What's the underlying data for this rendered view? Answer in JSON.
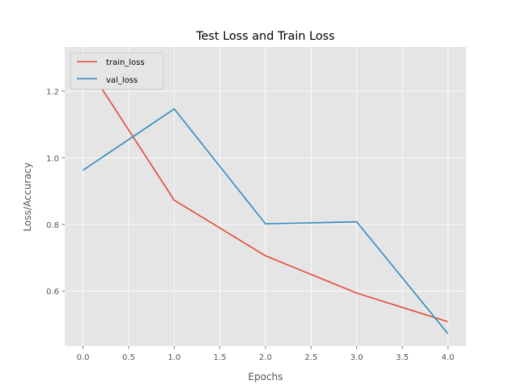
{
  "chart_data": {
    "type": "line",
    "title": "Test Loss and Train Loss",
    "xlabel": "Epochs",
    "ylabel": "Loss/Accuracy",
    "x": [
      0,
      1,
      2,
      3,
      4
    ],
    "series": [
      {
        "name": "train_loss",
        "color": "#E24A33",
        "values": [
          1.295,
          0.873,
          0.706,
          0.594,
          0.508
        ]
      },
      {
        "name": "val_loss",
        "color": "#348ABD",
        "values": [
          0.963,
          1.147,
          0.802,
          0.808,
          0.472
        ]
      }
    ],
    "xlim": [
      -0.2,
      4.2
    ],
    "ylim": [
      0.435,
      1.333
    ],
    "xticks": [
      "0.0",
      "0.5",
      "1.0",
      "1.5",
      "2.0",
      "2.5",
      "3.0",
      "3.5",
      "4.0"
    ],
    "yticks": [
      "0.6",
      "0.8",
      "1.0",
      "1.2"
    ],
    "grid": true,
    "background": "#E5E5E5",
    "legend_position": "top-left"
  }
}
